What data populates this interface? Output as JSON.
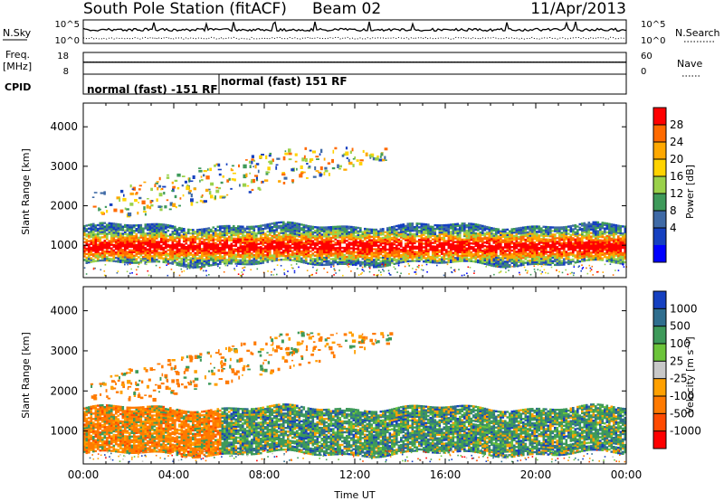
{
  "header": {
    "station": "South Pole Station (fitACF)",
    "beam": "Beam 02",
    "date": "11/Apr/2013"
  },
  "chart_data": [
    {
      "type": "line",
      "panel": "N.Sky / N.Search",
      "left_label": "N.Sky",
      "right_label": "N.Search",
      "left_ticks": [
        "10^5",
        "10^0"
      ],
      "right_ticks": [
        "10^5",
        "10^0"
      ],
      "series": [
        {
          "name": "N.Sky",
          "style": "solid"
        },
        {
          "name": "N.Search",
          "style": "dotted"
        }
      ]
    },
    {
      "type": "line",
      "panel": "Freq / Nave",
      "left_label_lines": [
        "Freq.",
        "[MHz]"
      ],
      "right_label": "Nave",
      "left_ticks": [
        "18",
        "8"
      ],
      "right_ticks": [
        "60",
        "0"
      ],
      "series": [
        {
          "name": "Freq.",
          "style": "solid",
          "level": 0.55
        },
        {
          "name": "Nave",
          "style": "dotted",
          "level": 0.55
        }
      ]
    },
    {
      "type": "table",
      "panel": "CPID",
      "label": "CPID",
      "segments": [
        {
          "label": "normal (fast) -151 RF",
          "start_hour": 0,
          "end_hour": 6
        },
        {
          "label": "normal (fast) 151 RF",
          "start_hour": 6,
          "end_hour": 24
        }
      ]
    },
    {
      "type": "heatmap",
      "panel": "Power",
      "xlabel": "",
      "ylabel": "Slant Range [km]",
      "xlim": [
        0,
        24
      ],
      "ylim": [
        180,
        4600
      ],
      "yticks": [
        "1000",
        "2000",
        "3000",
        "4000"
      ],
      "colorbar": {
        "label": "Power [dB]",
        "ticks": [
          "28",
          "24",
          "20",
          "16",
          "12",
          "8",
          "4"
        ],
        "colors": [
          "#ff0000",
          "#ff6a00",
          "#ffa800",
          "#ffd300",
          "#9ad14a",
          "#3e9a5a",
          "#3f6aa6",
          "#1540c0",
          "#0000ff"
        ]
      },
      "echo_regions": [
        {
          "name": "main F-region band",
          "start_hour": 0,
          "end_hour": 24,
          "range_km": [
            600,
            1300
          ]
        },
        {
          "name": "far-range patches",
          "start_hour": 0.3,
          "end_hour": 13.6,
          "range_km": [
            1800,
            3500
          ]
        }
      ]
    },
    {
      "type": "heatmap",
      "panel": "Velocity",
      "xlabel": "Time UT",
      "ylabel": "Slant Range [km]",
      "xlim": [
        0,
        24
      ],
      "ylim": [
        180,
        4600
      ],
      "xticks": [
        "00:00",
        "04:00",
        "08:00",
        "12:00",
        "16:00",
        "20:00",
        "00:00"
      ],
      "yticks": [
        "1000",
        "2000",
        "3000",
        "4000"
      ],
      "colorbar": {
        "label": "Velocity [m s⁻¹]",
        "ticks": [
          "1000",
          "500",
          "100",
          "25",
          "-25",
          "-100",
          "-500",
          "-1000"
        ],
        "colors": [
          "#1540c0",
          "#2f6e8e",
          "#3e9a5a",
          "#6cc43a",
          "#c8c8c8",
          "#ffa000",
          "#ff7a00",
          "#ff4a00",
          "#ff0000"
        ]
      },
      "echo_regions": [
        {
          "name": "main F-region band",
          "start_hour": 0,
          "end_hour": 24,
          "range_km": [
            500,
            1400
          ]
        },
        {
          "name": "far-range patches",
          "start_hour": 0.3,
          "end_hour": 13.6,
          "range_km": [
            1800,
            3500
          ]
        }
      ]
    }
  ]
}
